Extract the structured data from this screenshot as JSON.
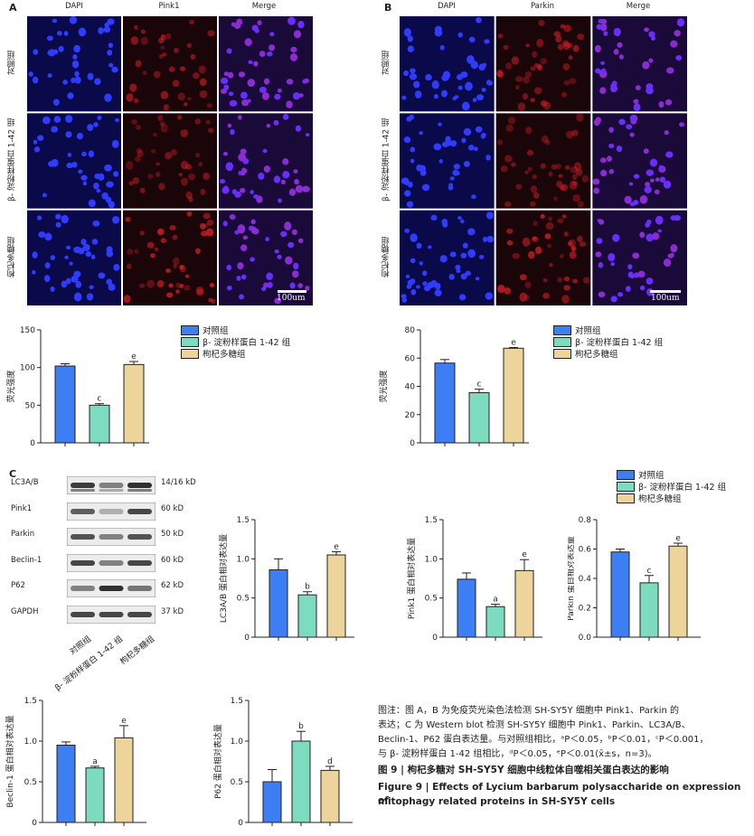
{
  "panel_A": {
    "letter": "A",
    "columns": [
      "DAPI",
      "Pink1",
      "Merge"
    ],
    "rows": [
      "对照组",
      "β- 淀粉样蛋白 1-42 组",
      "枸杞多糖组"
    ],
    "scale_label": "100um"
  },
  "panel_B": {
    "letter": "B",
    "columns": [
      "DAPI",
      "Parkin",
      "Merge"
    ],
    "rows": [
      "对照组",
      "β- 淀粉样蛋白 1-42 组",
      "枸杞多糖组"
    ],
    "scale_label": "100um"
  },
  "panel_C": {
    "letter": "C",
    "wb_rows": [
      {
        "name": "LC3A/B",
        "kd": "14/16 kD"
      },
      {
        "name": "Pink1",
        "kd": "60 kD"
      },
      {
        "name": "Parkin",
        "kd": "50 kD"
      },
      {
        "name": "Beclin-1",
        "kd": "60 kD"
      },
      {
        "name": "P62",
        "kd": "62 kD"
      },
      {
        "name": "GAPDH",
        "kd": "37 kD"
      }
    ],
    "lanes": [
      "对照组",
      "β- 淀粉样蛋白 1-42 组",
      "枸杞多糖组"
    ]
  },
  "legend": {
    "items": [
      "对照组",
      "β- 淀粉样蛋白 1-42 组",
      "枸杞多糖组"
    ],
    "colors": [
      "#3d7ef5",
      "#7ddcbf",
      "#ecd49a"
    ]
  },
  "chart_data": [
    {
      "type": "bar",
      "id": "A-pink1-fluor",
      "categories": [
        "对照组",
        "β- 淀粉样蛋白 1-42 组",
        "枸杞多糖组"
      ],
      "values": [
        102,
        50,
        104
      ],
      "errors": [
        3,
        2,
        4
      ],
      "labels": [
        "",
        "c",
        "e"
      ],
      "ylabel": "荧光强度",
      "ylim": [
        0,
        150
      ],
      "yticks": [
        0,
        50,
        100,
        150
      ],
      "tick_labels": [
        "0",
        "50",
        "100",
        "150"
      ]
    },
    {
      "type": "bar",
      "id": "B-parkin-fluor",
      "categories": [
        "对照组",
        "β- 淀粉样蛋白 1-42 组",
        "枸杞多糖组"
      ],
      "values": [
        56.5,
        35.5,
        67
      ],
      "errors": [
        2.5,
        2.5,
        0.5
      ],
      "labels": [
        "",
        "c",
        "e"
      ],
      "ylabel": "荧光强度",
      "ylim": [
        0,
        80
      ],
      "yticks": [
        0,
        20,
        40,
        60,
        80
      ],
      "tick_labels": [
        "0",
        "20",
        "40",
        "60",
        "80"
      ]
    },
    {
      "type": "bar",
      "id": "C-lc3",
      "categories": [
        "对照组",
        "β- 淀粉样蛋白 1-42 组",
        "枸杞多糖组"
      ],
      "values": [
        0.86,
        0.54,
        1.05
      ],
      "errors": [
        0.14,
        0.04,
        0.04
      ],
      "labels": [
        "",
        "b",
        "e"
      ],
      "ylabel": "LC3A/B 蛋白相对表达量",
      "ylim": [
        0,
        1.5
      ],
      "yticks": [
        0,
        0.5,
        1.0,
        1.5
      ],
      "tick_labels": [
        "0",
        "0.5",
        "1.0",
        "1.5"
      ]
    },
    {
      "type": "bar",
      "id": "C-pink1",
      "categories": [
        "对照组",
        "β- 淀粉样蛋白 1-42 组",
        "枸杞多糖组"
      ],
      "values": [
        0.74,
        0.39,
        0.85
      ],
      "errors": [
        0.08,
        0.03,
        0.14
      ],
      "labels": [
        "",
        "a",
        "e"
      ],
      "ylabel": "Pink1 蛋白相对表达量",
      "ylim": [
        0,
        1.5
      ],
      "yticks": [
        0,
        0.5,
        1.0,
        1.5
      ],
      "tick_labels": [
        "0",
        "0.5",
        "1.0",
        "1.5"
      ]
    },
    {
      "type": "bar",
      "id": "C-parkin",
      "categories": [
        "对照组",
        "β- 淀粉样蛋白 1-42 组",
        "枸杞多糖组"
      ],
      "values": [
        0.58,
        0.37,
        0.62
      ],
      "errors": [
        0.02,
        0.05,
        0.02
      ],
      "labels": [
        "",
        "c",
        "e"
      ],
      "ylabel": "Parkin 蛋白相对表达量",
      "ylim": [
        0,
        0.8
      ],
      "yticks": [
        0,
        0.2,
        0.4,
        0.6,
        0.8
      ],
      "tick_labels": [
        "0.0",
        "0.2",
        "0.4",
        "0.6",
        "0.8"
      ]
    },
    {
      "type": "bar",
      "id": "C-beclin1",
      "categories": [
        "对照组",
        "β- 淀粉样蛋白 1-42 组",
        "枸杞多糖组"
      ],
      "values": [
        0.95,
        0.67,
        1.04
      ],
      "errors": [
        0.04,
        0.02,
        0.15
      ],
      "labels": [
        "",
        "a",
        "e"
      ],
      "ylabel": "Beclin-1 蛋白相对表达量",
      "ylim": [
        0,
        1.5
      ],
      "yticks": [
        0,
        0.5,
        1.0,
        1.5
      ],
      "tick_labels": [
        "0",
        "0.5",
        "1.0",
        "1.5"
      ]
    },
    {
      "type": "bar",
      "id": "C-p62",
      "categories": [
        "对照组",
        "β- 淀粉样蛋白 1-42 组",
        "枸杞多糖组"
      ],
      "values": [
        0.5,
        1.0,
        0.64
      ],
      "errors": [
        0.15,
        0.12,
        0.05
      ],
      "labels": [
        "",
        "b",
        "d"
      ],
      "ylabel": "P62 蛋白相对表达量",
      "ylim": [
        0,
        1.5
      ],
      "yticks": [
        0,
        0.5,
        1.0,
        1.5
      ],
      "tick_labels": [
        "0",
        "0.5",
        "1.0",
        "1.5"
      ]
    }
  ],
  "caption": {
    "line1": "图注：图 A，B 为免疫荧光染色法检测 SH-SY5Y 细胞中 Pink1、Parkin 的",
    "line2": "表达；C 为 Western blot 检测 SH-SY5Y 细胞中 Pink1、Parkin、LC3A/B、",
    "line3": "Beclin-1、P62 蛋白表达量。与对照组相比，ᵃP＜0.05，ᵇP＜0.01，ᶜP＜0.001，",
    "line4": "与 β- 淀粉样蛋白 1-42 组相比，ᵈP＜0.05，ᵉP＜0.01(x̄±s，n=3)。",
    "title_cn": "图 9  | 枸杞多糖对 SH-SY5Y 细胞中线粒体自噬相关蛋白表达的影响",
    "title_en_1": "Figure 9  |  Effects of Lycium barbarum polysaccharide on expression of",
    "title_en_2": "mitophagy related proteins in SH-SY5Y cells"
  }
}
